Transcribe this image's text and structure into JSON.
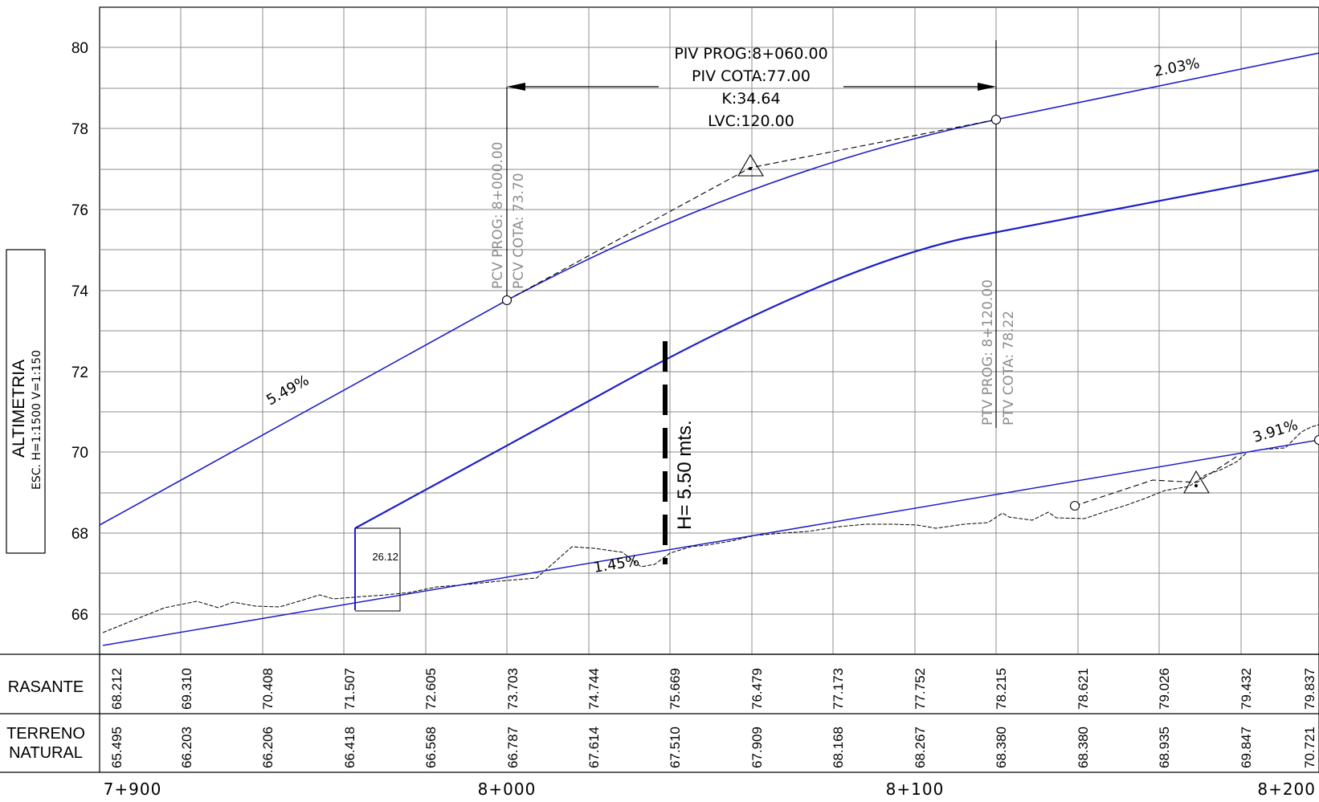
{
  "drawing": {
    "title": "ALTIMETRIA",
    "scale": "ESC.  H=1:1500  V=1:150",
    "y_ticks": [
      "66",
      "68",
      "70",
      "72",
      "74",
      "76",
      "78",
      "80"
    ],
    "stations": [
      "7+900",
      "8+000",
      "8+100",
      "8+200"
    ]
  },
  "table": {
    "row1_label": "RASANTE",
    "row2_label_line1": "TERRENO",
    "row2_label_line2": "NATURAL",
    "rasante": [
      "68.212",
      "69.310",
      "70.408",
      "71.507",
      "72.605",
      "73.703",
      "74.744",
      "75.669",
      "76.479",
      "77.173",
      "77.752",
      "78.215",
      "78.621",
      "79.026",
      "79.432",
      "79.837"
    ],
    "terreno": [
      "65.495",
      "66.203",
      "66.206",
      "66.418",
      "66.568",
      "66.787",
      "67.614",
      "67.510",
      "67.909",
      "68.168",
      "68.267",
      "68.380",
      "68.380",
      "68.935",
      "69.847",
      "70.721"
    ]
  },
  "annotations": {
    "piv_prog": "PIV  PROG:8+060.00",
    "piv_cota": "PIV  COTA:77.00",
    "k": "K:34.64",
    "lvc": "LVC:120.00",
    "pcv_prog": "PCV  PROG:  8+000.00",
    "pcv_cota": "PCV  COTA:  73.70",
    "ptv_prog": "PTV  PROG:  8+120.00",
    "ptv_cota": "PTV  COTA:  78.22",
    "grade_left": "5.49%",
    "grade_right": "2.03%",
    "grade_low": "1.45%",
    "grade_low_right": "3.91%",
    "box_value": "26.12",
    "height_label": "H= 5.50 mts."
  },
  "colors": {
    "alignment": "#1e1ec8",
    "grid": "#8c8c8c",
    "vertical_notes": "#8c8c8c"
  }
}
